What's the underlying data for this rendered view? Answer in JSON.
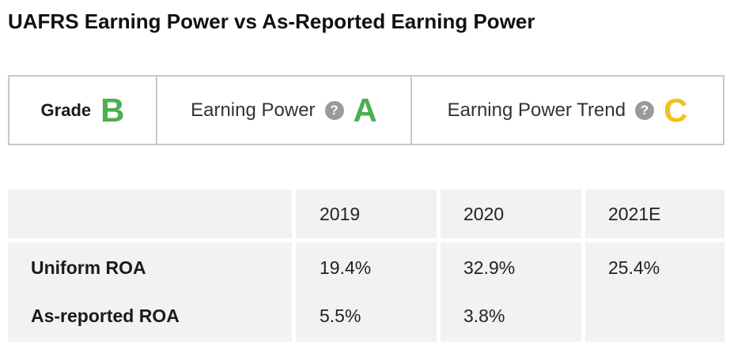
{
  "title": "UAFRS Earning Power vs As-Reported Earning Power",
  "grades": {
    "overall": {
      "label": "Grade",
      "letter": "B",
      "color": "#4caf50"
    },
    "earning_power": {
      "label": "Earning Power",
      "help": "?",
      "letter": "A",
      "color": "#4caf50"
    },
    "earning_power_trend": {
      "label": "Earning Power Trend",
      "help": "?",
      "letter": "C",
      "color": "#f2c11c"
    }
  },
  "table": {
    "columns": [
      "2019",
      "2020",
      "2021E"
    ],
    "rows": [
      {
        "label": "Uniform ROA",
        "values": [
          "19.4%",
          "32.9%",
          "25.4%"
        ]
      },
      {
        "label": "As-reported ROA",
        "values": [
          "5.5%",
          "3.8%",
          ""
        ]
      }
    ]
  }
}
